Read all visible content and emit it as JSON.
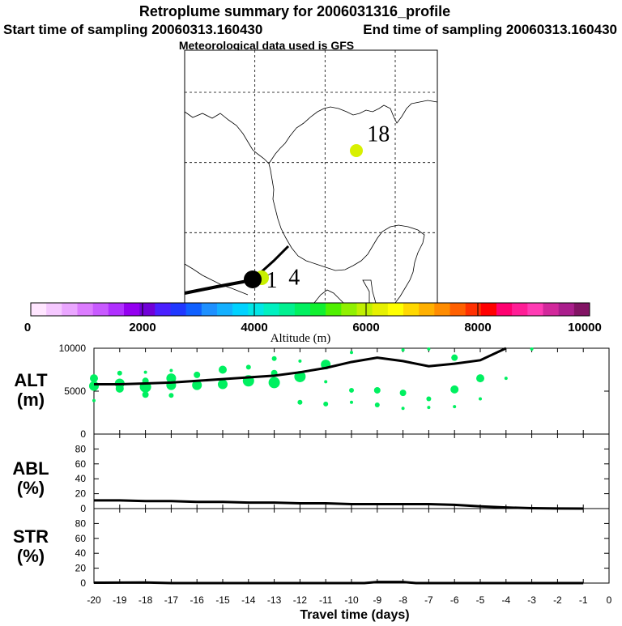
{
  "header": {
    "title": "Retroplume summary for 2006031316_profile",
    "start_label": "Start time of sampling 20060313.160430",
    "end_label": "End time of sampling 20060313.160430",
    "met_label": "Meteorological data used is GFS"
  },
  "map": {
    "labels": [
      {
        "text": "18",
        "lon": -86.2,
        "lat": 26.5
      },
      {
        "text": "1",
        "lon": -93.8,
        "lat": 16.1
      },
      {
        "text": "4",
        "lon": -92.2,
        "lat": 16.3
      }
    ],
    "lon_range": [
      -100,
      -82
    ],
    "lat_range": [
      15,
      33
    ],
    "grid_lons": [
      -95,
      -90,
      -85
    ],
    "grid_lats": [
      30,
      25,
      20
    ]
  },
  "colorbar": {
    "title": "Altitude (m)",
    "tick_values": [
      0,
      2000,
      4000,
      6000,
      8000,
      10000
    ],
    "tick_labels": [
      "0",
      "2000",
      "4000",
      "6000",
      "8000",
      "10000"
    ],
    "colors": [
      "#ffe6ff",
      "#f5c8ff",
      "#eaa6ff",
      "#dc7cff",
      "#c85aff",
      "#b030ff",
      "#9400f0",
      "#7000d8",
      "#4a20ff",
      "#2038ff",
      "#1060ff",
      "#1e90ff",
      "#14b0ff",
      "#00d2ff",
      "#00e6e6",
      "#00f0c0",
      "#00f090",
      "#00f060",
      "#10f030",
      "#50f000",
      "#90f000",
      "#c0f000",
      "#e6f000",
      "#ffff00",
      "#ffd800",
      "#ffb000",
      "#ff8c00",
      "#ff6000",
      "#ff3000",
      "#ff0000",
      "#ff0070",
      "#ff1e96",
      "#ff3cb4",
      "#d2289b",
      "#aa1e8c",
      "#821464"
    ]
  },
  "panel_labels": {
    "alt": [
      "ALT",
      "(m)"
    ],
    "abl": [
      "ABL",
      "(%)"
    ],
    "str": [
      "STR",
      "(%)"
    ]
  },
  "chart_data": [
    {
      "type": "scatter",
      "name": "ALT",
      "ylabel": "ALT (m)",
      "ylim": [
        0,
        10000
      ],
      "xlim": [
        -20,
        0
      ],
      "ytick_labels": [
        "10000",
        "5000",
        "0"
      ],
      "ytick_values": [
        10000,
        5000,
        0
      ],
      "line_x": [
        -20,
        -19,
        -18,
        -17,
        -16,
        -15,
        -14,
        -13,
        -12,
        -11,
        -10,
        -9,
        -8,
        -7,
        -6,
        -5,
        -4
      ],
      "line_y": [
        5800,
        5800,
        5900,
        6000,
        6200,
        6400,
        6600,
        6800,
        7200,
        7700,
        8400,
        8900,
        8500,
        7900,
        8200,
        8600,
        10000
      ],
      "points": [
        {
          "x": -20,
          "y": 6500,
          "r": 5
        },
        {
          "x": -20,
          "y": 5600,
          "r": 6
        },
        {
          "x": -20,
          "y": 3900,
          "r": 2
        },
        {
          "x": -19,
          "y": 7100,
          "r": 3
        },
        {
          "x": -19,
          "y": 5900,
          "r": 6
        },
        {
          "x": -19,
          "y": 5300,
          "r": 5
        },
        {
          "x": -18,
          "y": 7200,
          "r": 2
        },
        {
          "x": -18,
          "y": 6200,
          "r": 4
        },
        {
          "x": -18,
          "y": 5500,
          "r": 7
        },
        {
          "x": -18,
          "y": 4600,
          "r": 4
        },
        {
          "x": -17,
          "y": 7400,
          "r": 2
        },
        {
          "x": -17,
          "y": 6500,
          "r": 6
        },
        {
          "x": -17,
          "y": 5700,
          "r": 6
        },
        {
          "x": -17,
          "y": 4500,
          "r": 3
        },
        {
          "x": -16,
          "y": 6900,
          "r": 4
        },
        {
          "x": -16,
          "y": 5700,
          "r": 6
        },
        {
          "x": -15,
          "y": 7500,
          "r": 5
        },
        {
          "x": -15,
          "y": 5800,
          "r": 6
        },
        {
          "x": -14,
          "y": 7800,
          "r": 3
        },
        {
          "x": -14,
          "y": 6200,
          "r": 7
        },
        {
          "x": -13,
          "y": 8800,
          "r": 3
        },
        {
          "x": -13,
          "y": 7100,
          "r": 4
        },
        {
          "x": -13,
          "y": 6000,
          "r": 7
        },
        {
          "x": -12,
          "y": 8500,
          "r": 2
        },
        {
          "x": -12,
          "y": 6700,
          "r": 7
        },
        {
          "x": -12,
          "y": 3700,
          "r": 3
        },
        {
          "x": -11,
          "y": 8100,
          "r": 6
        },
        {
          "x": -11,
          "y": 6100,
          "r": 2
        },
        {
          "x": -11,
          "y": 3500,
          "r": 3
        },
        {
          "x": -10,
          "y": 9500,
          "r": 2
        },
        {
          "x": -10,
          "y": 5100,
          "r": 3
        },
        {
          "x": -10,
          "y": 3700,
          "r": 2
        },
        {
          "x": -9,
          "y": 5100,
          "r": 4
        },
        {
          "x": -9,
          "y": 3400,
          "r": 3
        },
        {
          "x": -8,
          "y": 9800,
          "r": 2
        },
        {
          "x": -8,
          "y": 4800,
          "r": 4
        },
        {
          "x": -8,
          "y": 3000,
          "r": 2
        },
        {
          "x": -7,
          "y": 9900,
          "r": 2
        },
        {
          "x": -7,
          "y": 4100,
          "r": 3
        },
        {
          "x": -7,
          "y": 3100,
          "r": 2
        },
        {
          "x": -6,
          "y": 8900,
          "r": 4
        },
        {
          "x": -6,
          "y": 5200,
          "r": 5
        },
        {
          "x": -6,
          "y": 3200,
          "r": 2
        },
        {
          "x": -5,
          "y": 6500,
          "r": 5
        },
        {
          "x": -5,
          "y": 4100,
          "r": 2
        },
        {
          "x": -4,
          "y": 6500,
          "r": 2
        },
        {
          "x": -3,
          "y": 9900,
          "r": 2
        }
      ]
    },
    {
      "type": "line",
      "name": "ABL",
      "ylabel": "ABL (%)",
      "ylim": [
        0,
        100
      ],
      "xlim": [
        -20,
        0
      ],
      "ytick_labels": [
        "80",
        "60",
        "40",
        "20",
        "0"
      ],
      "ytick_values": [
        80,
        60,
        40,
        20,
        0
      ],
      "x": [
        -20,
        -19,
        -18,
        -17,
        -16,
        -15,
        -14,
        -13,
        -12,
        -11,
        -10,
        -9,
        -8,
        -7,
        -6,
        -5,
        -4,
        -3,
        -2,
        -1
      ],
      "y": [
        11,
        11,
        10,
        10,
        9,
        9,
        8,
        8,
        7,
        7,
        6,
        6,
        6,
        6,
        5,
        3,
        1.5,
        0.5,
        0.2,
        0
      ]
    },
    {
      "type": "line",
      "name": "STR",
      "ylabel": "STR (%)",
      "ylim": [
        0,
        100
      ],
      "xlim": [
        -20,
        0
      ],
      "xlabel": "Travel time (days)",
      "ytick_labels": [
        "80",
        "60",
        "40",
        "20",
        "0"
      ],
      "ytick_values": [
        80,
        60,
        40,
        20,
        0
      ],
      "xtick_values": [
        -20,
        -19,
        -18,
        -17,
        -16,
        -15,
        -14,
        -13,
        -12,
        -11,
        -10,
        -9,
        -8,
        -7,
        -6,
        -5,
        -4,
        -3,
        -2,
        -1,
        0
      ],
      "xtick_labels": [
        "-20",
        "-19",
        "-18",
        "-17",
        "-16",
        "-15",
        "-14",
        "-13",
        "-12",
        "-11",
        "-10",
        "-9",
        "-8",
        "-7",
        "-6",
        "-5",
        "-4",
        "-3",
        "-2",
        "-1",
        "0"
      ],
      "x": [
        -20,
        -18,
        -17,
        -9.5,
        -9,
        -8,
        -7.5,
        -1
      ],
      "y": [
        0.5,
        0.8,
        0,
        0,
        1.5,
        1.5,
        0,
        0
      ]
    }
  ]
}
